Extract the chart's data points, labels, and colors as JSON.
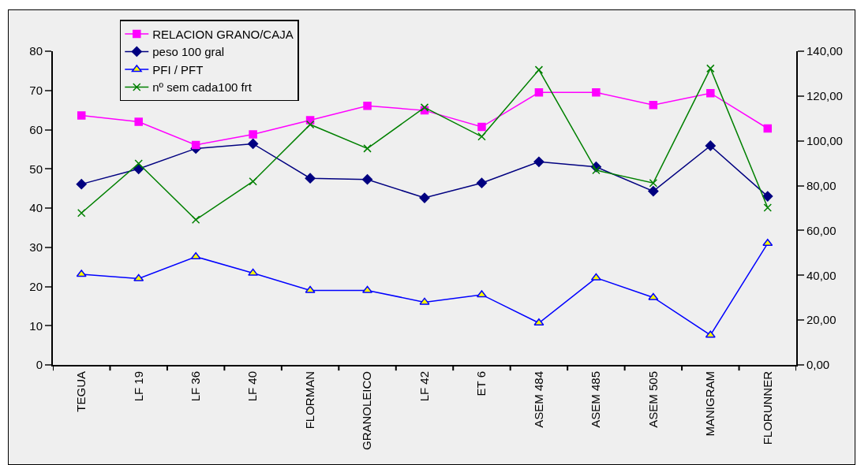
{
  "chart_data": {
    "type": "line",
    "categories": [
      "TEGUA",
      "LF 19",
      "LF 36",
      "LF 40",
      "FLORMAN",
      "GRANOLEICO",
      "LF 42",
      "ET 6",
      "ASEM 484",
      "ASEM 485",
      "ASEM 505",
      "MANIGRAM",
      "FLORUNNER"
    ],
    "series": [
      {
        "name": "RELACION GRANO/CAJA",
        "color": "#ff00ff",
        "marker": "square",
        "values": [
          63.6,
          62.0,
          56.1,
          58.8,
          62.4,
          66.1,
          64.9,
          60.7,
          69.5,
          69.5,
          66.3,
          69.3,
          60.3
        ]
      },
      {
        "name": "peso 100 gral",
        "color": "#000080",
        "marker": "diamond",
        "values": [
          46.1,
          50.0,
          55.2,
          56.4,
          47.6,
          47.3,
          42.6,
          46.4,
          51.8,
          50.5,
          44.3,
          55.9,
          43.0
        ]
      },
      {
        "name": "PFI / PFT",
        "color": "#0000ff",
        "marker": "triangle",
        "values": [
          23.1,
          22.0,
          27.6,
          23.4,
          19.0,
          19.0,
          16.0,
          17.9,
          10.7,
          22.2,
          17.2,
          7.6,
          31.0
        ]
      },
      {
        "name": "nº sem cada100 frt",
        "color": "#008000",
        "marker": "cross",
        "axis": "y2",
        "values": [
          67.8,
          89.9,
          64.8,
          81.9,
          107.3,
          96.6,
          114.9,
          101.9,
          131.7,
          86.9,
          81.2,
          132.3,
          70.2
        ]
      }
    ],
    "ylim": [
      0,
      80
    ],
    "yticks": [
      0,
      10,
      20,
      30,
      40,
      50,
      60,
      70,
      80
    ],
    "y2lim": [
      0,
      140
    ],
    "y2ticks": [
      {
        "value": 0,
        "label": "0,00"
      },
      {
        "value": 20,
        "label": "20,00"
      },
      {
        "value": 40,
        "label": "40,00"
      },
      {
        "value": 60,
        "label": "60,00"
      },
      {
        "value": 80,
        "label": "80,00"
      },
      {
        "value": 100,
        "label": "100,00"
      },
      {
        "value": 120,
        "label": "120,00"
      },
      {
        "value": 140,
        "label": "140,00"
      }
    ],
    "legend": "top left",
    "line_style": "solid"
  }
}
